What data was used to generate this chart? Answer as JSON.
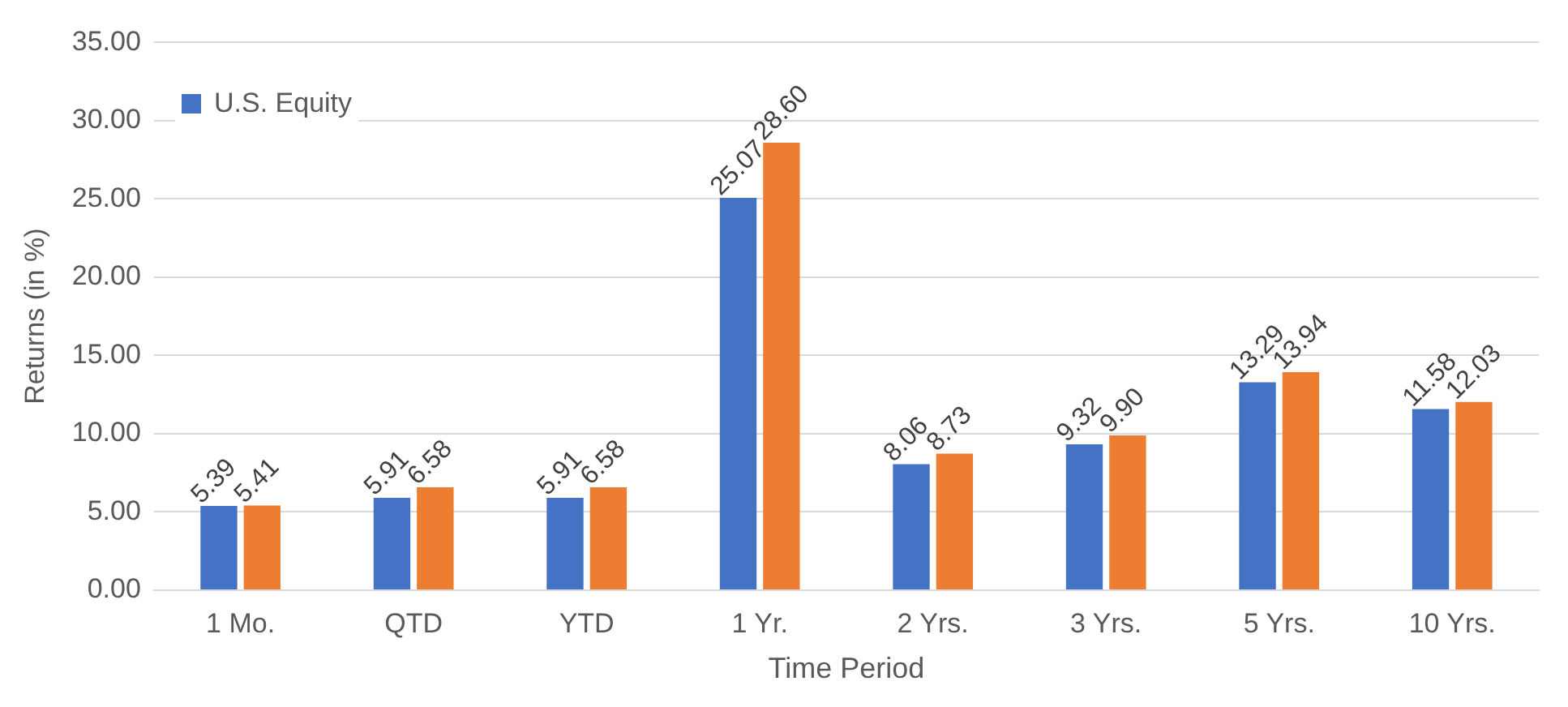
{
  "chart_data": {
    "type": "bar",
    "xlabel": "Time Period",
    "ylabel": "Returns (in %)",
    "categories": [
      "1 Mo.",
      "QTD",
      "YTD",
      "1 Yr.",
      "2 Yrs.",
      "3 Yrs.",
      "5 Yrs.",
      "10 Yrs."
    ],
    "series": [
      {
        "name": "U.S. Equity",
        "color": "#4472c4",
        "values": [
          5.39,
          5.91,
          5.91,
          25.07,
          8.06,
          9.32,
          13.29,
          11.58
        ],
        "value_labels": [
          "5.39",
          "5.91",
          "5.91",
          "25.07",
          "8.06",
          "9.32",
          "13.29",
          "11.58"
        ]
      },
      {
        "color": "#ed7d31",
        "values": [
          5.41,
          6.58,
          6.58,
          28.6,
          8.73,
          9.9,
          13.94,
          12.03
        ],
        "value_labels": [
          "5.41",
          "6.58",
          "6.58",
          "28.60",
          "8.73",
          "9.90",
          "13.94",
          "12.03"
        ]
      }
    ],
    "ylim": [
      0,
      35
    ],
    "yticks": [
      {
        "value": 0,
        "label": "0.00"
      },
      {
        "value": 5,
        "label": "5.00"
      },
      {
        "value": 10,
        "label": "10.00"
      },
      {
        "value": 15,
        "label": "15.00"
      },
      {
        "value": 20,
        "label": "20.00"
      },
      {
        "value": 25,
        "label": "25.00"
      },
      {
        "value": 30,
        "label": "30.00"
      },
      {
        "value": 35,
        "label": "35.00"
      }
    ],
    "grid": "y",
    "legend": "top left"
  }
}
